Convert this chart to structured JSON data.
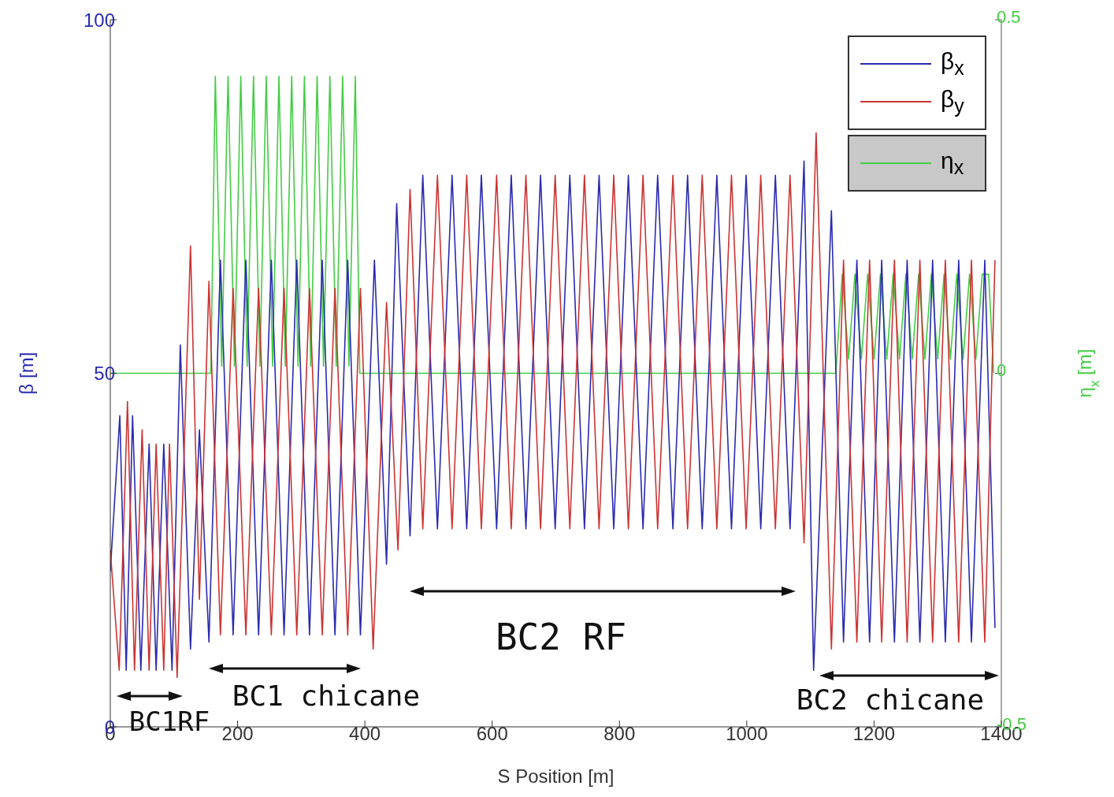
{
  "chart_data": {
    "type": "line",
    "xlabel": "S Position [m]",
    "ylabel": "β [m]",
    "y2label": "η$_{x}$ [m]",
    "xlim": [
      0,
      1400
    ],
    "xticks": [
      0,
      200,
      400,
      600,
      800,
      1000,
      1200,
      1400
    ],
    "ylim": [
      0,
      100
    ],
    "yticks": [
      0,
      50,
      100
    ],
    "y2lim": [
      -0.5,
      0.5
    ],
    "y2ticks": [
      -0.5,
      0,
      0.5
    ],
    "legend": "top right",
    "series": [
      {
        "name": "β$_{x}$",
        "color": "#2a2ab0",
        "x": [
          0,
          15,
          25,
          35,
          48,
          61,
          72,
          84,
          97,
          110,
          126,
          140,
          155,
          173,
          193,
          213,
          233,
          253,
          273,
          293,
          313,
          333,
          353,
          373,
          393,
          415,
          434,
          450,
          471,
          491,
          514,
          537,
          560,
          583,
          607,
          630,
          653,
          676,
          699,
          722,
          745,
          768,
          791,
          814,
          837,
          860,
          884,
          907,
          930,
          953,
          976,
          999,
          1022,
          1045,
          1068,
          1090,
          1105,
          1133,
          1152,
          1173,
          1193,
          1212,
          1232,
          1252,
          1272,
          1292,
          1312,
          1333,
          1353,
          1374,
          1390
        ],
        "values": [
          22,
          44,
          8,
          44,
          8,
          40,
          8,
          40,
          8,
          54,
          11,
          42,
          12,
          66,
          13,
          66,
          13,
          66,
          13,
          66,
          13,
          66,
          13,
          66,
          13,
          66,
          23,
          74,
          27,
          78,
          28,
          78,
          28,
          78,
          28,
          78,
          28,
          78,
          28,
          78,
          28,
          78,
          28,
          78,
          28,
          78,
          28,
          78,
          28,
          78,
          28,
          78,
          28,
          78,
          28,
          80,
          8,
          73,
          12,
          66,
          12,
          66,
          12,
          66,
          12,
          66,
          12,
          66,
          12,
          66,
          14
        ]
      },
      {
        "name": "β$_{y}$",
        "color": "#cc3333",
        "x": [
          0,
          14,
          27,
          38,
          50,
          61,
          72,
          84,
          93,
          105,
          126,
          140,
          155,
          173,
          193,
          213,
          233,
          253,
          273,
          293,
          313,
          333,
          353,
          373,
          393,
          413,
          434,
          452,
          471,
          491,
          514,
          537,
          560,
          583,
          607,
          630,
          653,
          676,
          699,
          722,
          745,
          768,
          791,
          814,
          837,
          860,
          884,
          907,
          930,
          953,
          976,
          999,
          1022,
          1045,
          1068,
          1090,
          1109,
          1133,
          1152,
          1173,
          1193,
          1212,
          1232,
          1252,
          1272,
          1292,
          1312,
          1333,
          1353,
          1374,
          1390
        ],
        "values": [
          25,
          8,
          46,
          8,
          42,
          8,
          40,
          8,
          40,
          7,
          68,
          18,
          63,
          13,
          62,
          13,
          62,
          13,
          62,
          13,
          62,
          13,
          62,
          13,
          62,
          11,
          60,
          25,
          76,
          28,
          78,
          28,
          78,
          28,
          78,
          28,
          78,
          28,
          78,
          28,
          78,
          28,
          78,
          28,
          78,
          28,
          78,
          28,
          78,
          28,
          78,
          28,
          78,
          28,
          78,
          26,
          84,
          11,
          66,
          12,
          66,
          12,
          66,
          12,
          66,
          12,
          66,
          12,
          66,
          12,
          66
        ]
      },
      {
        "name": "η$_{x}$",
        "color": "#44cc44",
        "axis": "y2",
        "x": [
          0,
          158,
          165,
          175,
          185,
          195,
          205,
          215,
          225,
          235,
          245,
          255,
          265,
          275,
          285,
          295,
          305,
          315,
          325,
          335,
          345,
          355,
          365,
          375,
          385,
          392,
          1140,
          1150,
          1160,
          1170,
          1180,
          1190,
          1200,
          1210,
          1220,
          1230,
          1240,
          1250,
          1260,
          1270,
          1280,
          1290,
          1300,
          1310,
          1320,
          1330,
          1340,
          1350,
          1360,
          1370,
          1380,
          1388
        ],
        "values": [
          0,
          0,
          0.42,
          0.01,
          0.42,
          0.01,
          0.42,
          0.01,
          0.42,
          0.01,
          0.42,
          0.01,
          0.42,
          0.01,
          0.42,
          0.01,
          0.42,
          0.01,
          0.42,
          0.01,
          0.42,
          0.01,
          0.42,
          0.01,
          0.42,
          0,
          0,
          0.14,
          0.02,
          0.14,
          0.02,
          0.14,
          0.02,
          0.14,
          0.02,
          0.14,
          0.02,
          0.14,
          0.02,
          0.14,
          0.02,
          0.14,
          0.02,
          0.14,
          0.02,
          0.14,
          0.02,
          0.14,
          0.02,
          0.14,
          0.14,
          0
        ]
      }
    ],
    "annotations": [
      "BC1RF",
      "BC1 chicane",
      "BC2 RF",
      "BC2 chicane"
    ]
  }
}
